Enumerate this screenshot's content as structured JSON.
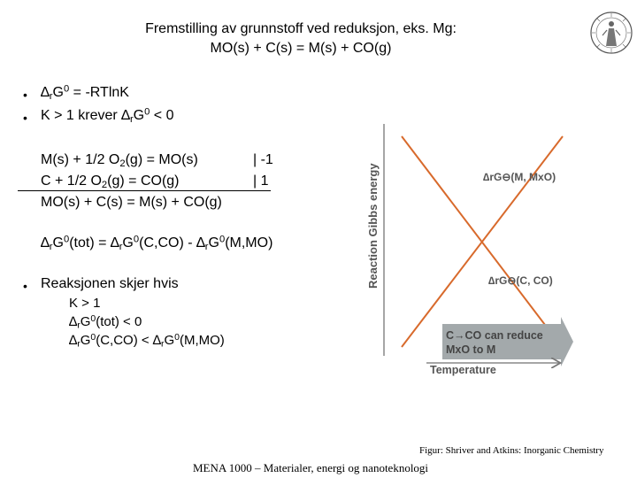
{
  "slide": {
    "title_line1": "Fremstilling av grunnstoff ved reduksjon, eks. Mg:",
    "title_line2": "MO(s) + C(s) = M(s) + CO(g)",
    "bullet_glyph": "•",
    "bullets_top": [
      {
        "pre": "∆",
        "sub": "r",
        "mid": "G",
        "sup": "0",
        "post": " = -RTlnK"
      },
      {
        "pre": "K > 1 krever ∆",
        "sub": "r",
        "mid": "G",
        "sup": "0",
        "post": " < 0"
      }
    ],
    "reaction1": {
      "a": "M(s) + 1/2 O",
      "sub": "2",
      "b": "(g) = MO(s)",
      "factor": "| -1"
    },
    "reaction2": {
      "a": "C + 1/2 O",
      "sub": "2",
      "b": "(g) = CO(g)",
      "factor": "| 1"
    },
    "reaction_sum": "MO(s) + C(s) = M(s) + CO(g)",
    "dg_tot": {
      "p1": "∆",
      "s1": "r",
      "p2": "G",
      "u1": "0",
      "p3": "(tot) = ∆",
      "s2": "r",
      "p4": "G",
      "u2": "0",
      "p5": "(C,CO) - ∆",
      "s3": "r",
      "p6": "G",
      "u3": "0",
      "p7": "(M,MO)"
    },
    "bullet_react": "Reaksjonen skjer hvis",
    "sub_items": {
      "k": "K > 1",
      "tot": {
        "p1": "∆",
        "s1": "r",
        "p2": "G",
        "u1": "0",
        "p3": "(tot) < 0"
      },
      "cmp": {
        "p1": "∆",
        "s1": "r",
        "p2": "G",
        "u1": "0",
        "p3": "(C,CO) < ∆",
        "s2": "r",
        "p4": "G",
        "u2": "0",
        "p5": "(M,MO)"
      }
    },
    "credit": "Figur: Shriver and Atkins: Inorganic Chemistry",
    "footer": "MENA 1000 – Materialer, energi og nanoteknologi"
  },
  "figure": {
    "y_axis_label": "Reaction Gibbs energy",
    "x_axis_label": "Temperature",
    "line_mmo_label": "∆rG⊖(M, MxO)",
    "line_cco_label": "∆rG⊖(C, CO)",
    "arrow_line1": "C→CO can reduce",
    "arrow_line2": "MxO to M",
    "colors": {
      "line": "#d86a2c",
      "arrow_fill": "#9aa1a3",
      "axis": "#777777",
      "label": "#555555"
    }
  }
}
